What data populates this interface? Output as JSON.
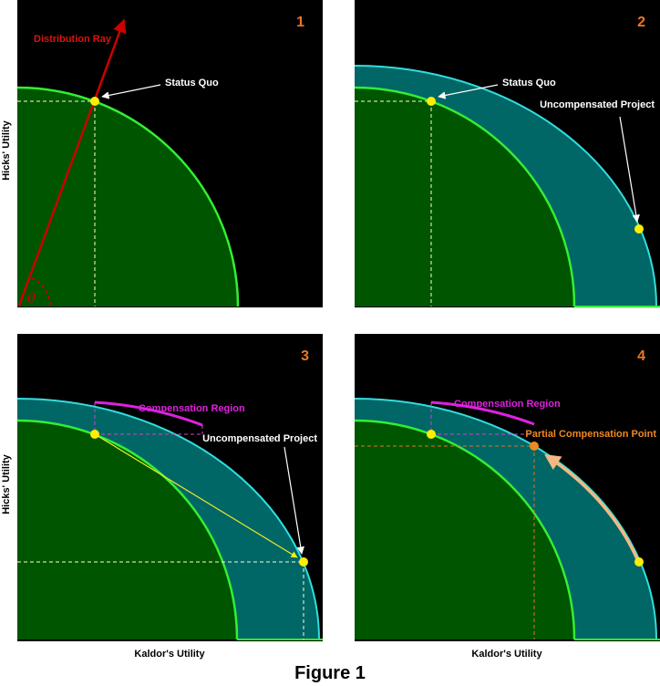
{
  "colors": {
    "background": "#000000",
    "status_quo_region": "#005500",
    "status_quo_frontier": "#33ee33",
    "project_band": "#006666",
    "project_frontier": "#33dddd",
    "distribution_ray": "#cc0000",
    "point_yellow": "#ffee00",
    "compensation_region": "#dd22dd",
    "partial_point": "#ee8822",
    "partial_arrow": "#f5b880",
    "panel_number": "#ee7722",
    "guide_white": "#ffffcc",
    "guide_magenta": "#cc44cc",
    "guide_orange": "#dd7722",
    "connector_yellow": "#eeee22"
  },
  "panels": [
    {
      "number": "1",
      "labels": {
        "distribution_ray": "Distribution Ray",
        "status_quo": "Status Quo",
        "theta": "θ"
      }
    },
    {
      "number": "2",
      "labels": {
        "status_quo": "Status Quo",
        "uncompensated_project": "Uncompensated Project"
      }
    },
    {
      "number": "3",
      "labels": {
        "compensation_region": "Compensation Region",
        "uncompensated_project": "Uncompensated Project"
      }
    },
    {
      "number": "4",
      "labels": {
        "compensation_region": "Compensation Region",
        "partial_compensation_point": "Partial Compensation Point"
      }
    }
  ],
  "axes": {
    "ylabel": "Hicks' Utility",
    "xlabel": "Kaldor's Utility"
  },
  "caption": "Figure 1"
}
